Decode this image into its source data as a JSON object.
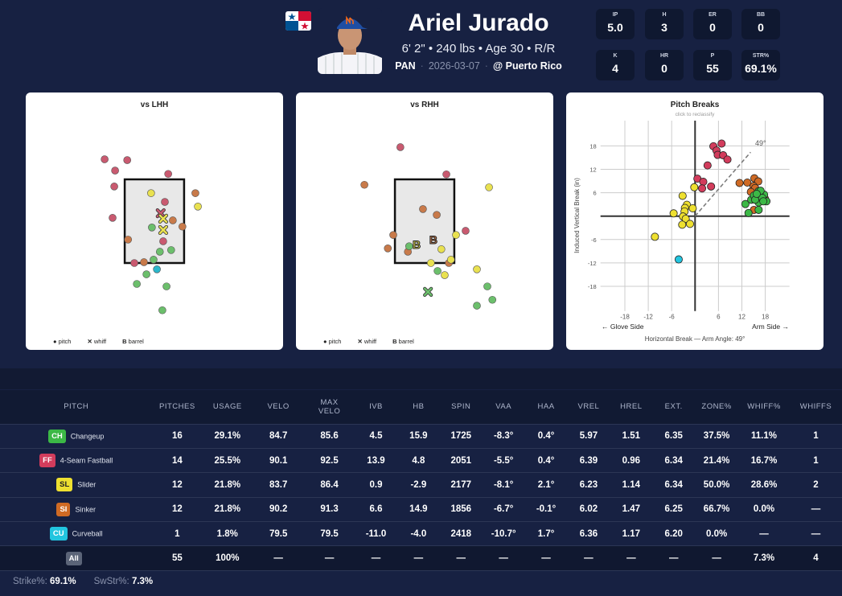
{
  "player": {
    "name": "Ariel Jurado",
    "bio": "6' 2\" • 240 lbs • Age 30 • R/R",
    "country": "PAN",
    "date": "2026-03-07",
    "opponent": "@ Puerto Rico"
  },
  "line": [
    {
      "label": "IP",
      "value": "5.0"
    },
    {
      "label": "H",
      "value": "3"
    },
    {
      "label": "ER",
      "value": "0"
    },
    {
      "label": "BB",
      "value": "0"
    },
    {
      "label": "K",
      "value": "4"
    },
    {
      "label": "HR",
      "value": "0"
    },
    {
      "label": "P",
      "value": "55"
    },
    {
      "label": "STR%",
      "value": "69.1%"
    }
  ],
  "colors": {
    "CH": "#3cb846",
    "FF": "#d23c5c",
    "SL": "#eee030",
    "SI": "#cf6a24",
    "CU": "#22c5df",
    "All": "#5b6478"
  },
  "zone_colors": {
    "CH": "#6cbf6c",
    "FF": "#c95a70",
    "SL": "#e9e150",
    "SI": "#c87a4a",
    "CU": "#2bb8cc"
  },
  "legend": {
    "pitch": "pitch",
    "whiff": "whiff",
    "barrel": "barrel",
    "barrel_mark": "B"
  },
  "chart_data": [
    {
      "type": "scatter",
      "title": "vs LHH",
      "units": "ft",
      "zone": {
        "x": [
          -0.71,
          0.71
        ],
        "z": [
          1.5,
          3.5
        ]
      },
      "points": [
        {
          "p": "FF",
          "x": -1.19,
          "z": 3.98
        },
        {
          "p": "FF",
          "x": -0.65,
          "z": 3.96
        },
        {
          "p": "FF",
          "x": -0.94,
          "z": 3.71
        },
        {
          "p": "FF",
          "x": -0.96,
          "z": 3.33
        },
        {
          "p": "FF",
          "x": -1.0,
          "z": 2.58
        },
        {
          "p": "FF",
          "x": 0.33,
          "z": 3.63
        },
        {
          "p": "FF",
          "x": 0.25,
          "z": 2.96
        },
        {
          "p": "FF",
          "x": 0.21,
          "z": 2.02
        },
        {
          "p": "FF",
          "x": -0.48,
          "z": 1.5
        },
        {
          "p": "SL",
          "x": -0.08,
          "z": 3.17
        },
        {
          "p": "SL",
          "x": 1.04,
          "z": 2.85
        },
        {
          "p": "SI",
          "x": 0.98,
          "z": 3.17
        },
        {
          "p": "SI",
          "x": 0.44,
          "z": 2.52
        },
        {
          "p": "SI",
          "x": 0.67,
          "z": 2.37
        },
        {
          "p": "SI",
          "x": -0.63,
          "z": 2.06
        },
        {
          "p": "SI",
          "x": -0.25,
          "z": 1.52
        },
        {
          "p": "CH",
          "x": -0.06,
          "z": 2.35
        },
        {
          "p": "CH",
          "x": 0.4,
          "z": 1.81
        },
        {
          "p": "CH",
          "x": 0.13,
          "z": 1.77
        },
        {
          "p": "CH",
          "x": -0.02,
          "z": 1.58
        },
        {
          "p": "CH",
          "x": -0.19,
          "z": 1.23
        },
        {
          "p": "CH",
          "x": -0.42,
          "z": 1.0
        },
        {
          "p": "CH",
          "x": 0.29,
          "z": 0.94
        },
        {
          "p": "CH",
          "x": 0.19,
          "z": 0.37
        },
        {
          "p": "CU",
          "x": 0.06,
          "z": 1.35
        },
        {
          "p": "FF",
          "x": 0.15,
          "z": 2.69,
          "r": "whiff"
        },
        {
          "p": "SL",
          "x": 0.21,
          "z": 2.56,
          "r": "whiff"
        },
        {
          "p": "SL",
          "x": 0.21,
          "z": 2.29,
          "r": "whiff"
        }
      ]
    },
    {
      "type": "scatter",
      "title": "vs RHH",
      "units": "ft",
      "zone": {
        "x": [
          -0.71,
          0.71
        ],
        "z": [
          1.5,
          3.5
        ]
      },
      "points": [
        {
          "p": "FF",
          "x": -0.58,
          "z": 4.27
        },
        {
          "p": "FF",
          "x": 0.52,
          "z": 3.62
        },
        {
          "p": "FF",
          "x": 0.98,
          "z": 2.27
        },
        {
          "p": "SI",
          "x": -1.44,
          "z": 3.37
        },
        {
          "p": "SI",
          "x": -0.04,
          "z": 2.79
        },
        {
          "p": "SI",
          "x": 0.29,
          "z": 2.65
        },
        {
          "p": "SI",
          "x": -0.75,
          "z": 2.17
        },
        {
          "p": "SI",
          "x": -0.88,
          "z": 1.85
        },
        {
          "p": "SI",
          "x": -0.4,
          "z": 1.77
        },
        {
          "p": "SI",
          "x": 0.58,
          "z": 1.5
        },
        {
          "p": "SL",
          "x": 1.54,
          "z": 3.31
        },
        {
          "p": "SL",
          "x": 0.75,
          "z": 2.17
        },
        {
          "p": "SL",
          "x": 0.4,
          "z": 1.83
        },
        {
          "p": "SL",
          "x": 0.15,
          "z": 1.5
        },
        {
          "p": "SL",
          "x": 0.63,
          "z": 1.58
        },
        {
          "p": "SL",
          "x": 0.48,
          "z": 1.21
        },
        {
          "p": "SL",
          "x": 1.25,
          "z": 1.35
        },
        {
          "p": "CH",
          "x": -0.37,
          "z": 1.9
        },
        {
          "p": "CH",
          "x": 0.31,
          "z": 1.31
        },
        {
          "p": "CH",
          "x": 1.5,
          "z": 0.94
        },
        {
          "p": "CH",
          "x": 1.62,
          "z": 0.62
        },
        {
          "p": "CH",
          "x": 1.25,
          "z": 0.48
        },
        {
          "p": "CH",
          "x": 0.08,
          "z": 0.81,
          "r": "whiff"
        },
        {
          "p": "SL",
          "x": -0.19,
          "z": 1.94,
          "r": "barrel"
        },
        {
          "p": "SI",
          "x": 0.21,
          "z": 2.06,
          "r": "barrel"
        }
      ]
    },
    {
      "type": "scatter",
      "title": "Pitch Breaks",
      "subtitle": "click to reclassify",
      "xlabel": "Horizontal Break — Arm Angle: 49°",
      "ylabel": "Induced Vertical Break (in)",
      "glove_label": "← Glove Side",
      "arm_label": "Arm Side →",
      "arm_angle_label": "49°",
      "arm_angle": 49,
      "xlim": [
        -24,
        24
      ],
      "ylim": [
        -24,
        24
      ],
      "xticks": [
        -18,
        -12,
        -6,
        6,
        12,
        18
      ],
      "xtick_labels": [
        "-18",
        "-12",
        "-6",
        "6",
        "12",
        "18"
      ],
      "yticks": [
        18,
        12,
        6,
        -6,
        -12,
        -18
      ],
      "ytick_labels": [
        "18",
        "12",
        "6",
        "-6",
        "-12",
        "-18"
      ],
      "points": [
        {
          "p": "FF",
          "x": 4.7,
          "y": 17.9
        },
        {
          "p": "FF",
          "x": 6.8,
          "y": 18.6
        },
        {
          "p": "FF",
          "x": 5.5,
          "y": 16.8
        },
        {
          "p": "FF",
          "x": 5.8,
          "y": 15.7
        },
        {
          "p": "FF",
          "x": 7.2,
          "y": 15.6
        },
        {
          "p": "FF",
          "x": 8.3,
          "y": 14.5
        },
        {
          "p": "FF",
          "x": 3.2,
          "y": 13.0
        },
        {
          "p": "FF",
          "x": 0.6,
          "y": 9.6
        },
        {
          "p": "FF",
          "x": 2.1,
          "y": 8.8
        },
        {
          "p": "FF",
          "x": 1.8,
          "y": 7.1
        },
        {
          "p": "FF",
          "x": 4.1,
          "y": 7.6
        },
        {
          "p": "SI",
          "x": 11.4,
          "y": 8.5
        },
        {
          "p": "SI",
          "x": 13.4,
          "y": 8.6
        },
        {
          "p": "SI",
          "x": 15.2,
          "y": 9.7
        },
        {
          "p": "SI",
          "x": 16.2,
          "y": 8.9
        },
        {
          "p": "SI",
          "x": 15.0,
          "y": 7.7
        },
        {
          "p": "SI",
          "x": 14.4,
          "y": 6.3
        },
        {
          "p": "SI",
          "x": 15.1,
          "y": 1.6
        },
        {
          "p": "SI",
          "x": 16.5,
          "y": 4.2
        },
        {
          "p": "SI",
          "x": 15.8,
          "y": 4.5
        },
        {
          "p": "SI",
          "x": 17.9,
          "y": 4.5
        },
        {
          "p": "SI",
          "x": 15.4,
          "y": 7.2
        },
        {
          "p": "SI",
          "x": 14.3,
          "y": 6.2
        },
        {
          "p": "CH",
          "x": 12.9,
          "y": 3.1
        },
        {
          "p": "CH",
          "x": 13.7,
          "y": 0.8
        },
        {
          "p": "CH",
          "x": 14.4,
          "y": 4.2
        },
        {
          "p": "CH",
          "x": 15.1,
          "y": 5.3
        },
        {
          "p": "CH",
          "x": 16.3,
          "y": 6.4
        },
        {
          "p": "CH",
          "x": 17.0,
          "y": 5.7
        },
        {
          "p": "CH",
          "x": 17.7,
          "y": 5.5
        },
        {
          "p": "CH",
          "x": 18.3,
          "y": 3.8
        },
        {
          "p": "CH",
          "x": 16.5,
          "y": 4.3
        },
        {
          "p": "CH",
          "x": 16.3,
          "y": 3.5
        },
        {
          "p": "CH",
          "x": 16.3,
          "y": 1.6
        },
        {
          "p": "CH",
          "x": 15.4,
          "y": 4.2
        },
        {
          "p": "CH",
          "x": 17.2,
          "y": 4.7
        },
        {
          "p": "CH",
          "x": 16.8,
          "y": 6.5
        },
        {
          "p": "CH",
          "x": 15.8,
          "y": 5.7
        },
        {
          "p": "CH",
          "x": 17.5,
          "y": 3.8
        },
        {
          "p": "SL",
          "x": -0.2,
          "y": 7.4
        },
        {
          "p": "SL",
          "x": -3.2,
          "y": 5.2
        },
        {
          "p": "SL",
          "x": -2.1,
          "y": 2.9
        },
        {
          "p": "SL",
          "x": -0.6,
          "y": 2.0
        },
        {
          "p": "SL",
          "x": -2.6,
          "y": 2.1
        },
        {
          "p": "SL",
          "x": -2.7,
          "y": 1.2
        },
        {
          "p": "SL",
          "x": -5.5,
          "y": 0.7
        },
        {
          "p": "SL",
          "x": -3.1,
          "y": -0.1
        },
        {
          "p": "SL",
          "x": -2.4,
          "y": -0.7
        },
        {
          "p": "SL",
          "x": -1.3,
          "y": -2.0
        },
        {
          "p": "SL",
          "x": -3.3,
          "y": -2.2
        },
        {
          "p": "SL",
          "x": -10.3,
          "y": -5.3
        },
        {
          "p": "CU",
          "x": -4.2,
          "y": -11.1
        }
      ]
    }
  ],
  "table": {
    "headers": [
      "PITCH",
      "PITCHES",
      "USAGE",
      "VELO",
      "MAX VELO",
      "IVB",
      "HB",
      "SPIN",
      "VAA",
      "HAA",
      "VREL",
      "HREL",
      "EXT.",
      "ZONE%",
      "WHIFF%",
      "WHIFFS"
    ],
    "rows": [
      {
        "code": "CH",
        "name": "Changeup",
        "cells": [
          "16",
          "29.1%",
          "84.7",
          "85.6",
          "4.5",
          "15.9",
          "1725",
          "-8.3°",
          "0.4°",
          "5.97",
          "1.51",
          "6.35",
          "37.5%",
          "11.1%",
          "1"
        ]
      },
      {
        "code": "FF",
        "name": "4-Seam Fastball",
        "cells": [
          "14",
          "25.5%",
          "90.1",
          "92.5",
          "13.9",
          "4.8",
          "2051",
          "-5.5°",
          "0.4°",
          "6.39",
          "0.96",
          "6.34",
          "21.4%",
          "16.7%",
          "1"
        ]
      },
      {
        "code": "SL",
        "name": "Slider",
        "cells": [
          "12",
          "21.8%",
          "83.7",
          "86.4",
          "0.9",
          "-2.9",
          "2177",
          "-8.1°",
          "2.1°",
          "6.23",
          "1.14",
          "6.34",
          "50.0%",
          "28.6%",
          "2"
        ]
      },
      {
        "code": "SI",
        "name": "Sinker",
        "cells": [
          "12",
          "21.8%",
          "90.2",
          "91.3",
          "6.6",
          "14.9",
          "1856",
          "-6.7°",
          "-0.1°",
          "6.02",
          "1.47",
          "6.25",
          "66.7%",
          "0.0%",
          "—"
        ]
      },
      {
        "code": "CU",
        "name": "Curveball",
        "cells": [
          "1",
          "1.8%",
          "79.5",
          "79.5",
          "-11.0",
          "-4.0",
          "2418",
          "-10.7°",
          "1.7°",
          "6.36",
          "1.17",
          "6.20",
          "0.0%",
          "—",
          "—"
        ]
      },
      {
        "code": "All",
        "name": "",
        "cells": [
          "55",
          "100%",
          "—",
          "—",
          "—",
          "—",
          "—",
          "—",
          "—",
          "—",
          "—",
          "—",
          "—",
          "7.3%",
          "4"
        ]
      }
    ]
  },
  "footer": {
    "strike_label": "Strike%:",
    "strike": "69.1%",
    "swstr_label": "SwStr%:",
    "swstr": "7.3%"
  }
}
